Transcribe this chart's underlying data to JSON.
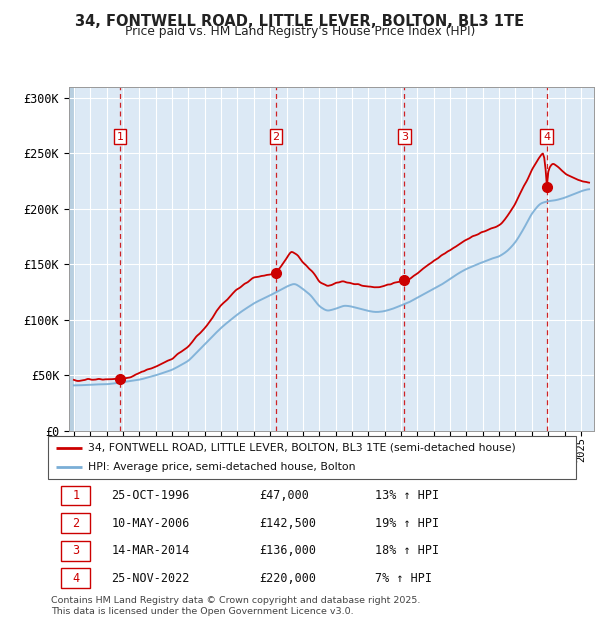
{
  "title_line1": "34, FONTWELL ROAD, LITTLE LEVER, BOLTON, BL3 1TE",
  "title_line2": "Price paid vs. HM Land Registry's House Price Index (HPI)",
  "bg_color": "#dce9f5",
  "hatch_left_color": "#c8d8ea",
  "grid_color": "#ffffff",
  "red_line_color": "#cc0000",
  "blue_line_color": "#7aaed6",
  "ylabel_values": [
    "£0",
    "£50K",
    "£100K",
    "£150K",
    "£200K",
    "£250K",
    "£300K"
  ],
  "ylim": [
    0,
    310000
  ],
  "xlim_start": 1993.7,
  "xlim_end": 2025.8,
  "sale_dates": [
    1996.82,
    2006.36,
    2014.21,
    2022.9
  ],
  "sale_prices": [
    47000,
    142500,
    136000,
    220000
  ],
  "sale_labels": [
    "1",
    "2",
    "3",
    "4"
  ],
  "legend_entries": [
    "34, FONTWELL ROAD, LITTLE LEVER, BOLTON, BL3 1TE (semi-detached house)",
    "HPI: Average price, semi-detached house, Bolton"
  ],
  "table_data": [
    [
      "1",
      "25-OCT-1996",
      "£47,000",
      "13% ↑ HPI"
    ],
    [
      "2",
      "10-MAY-2006",
      "£142,500",
      "19% ↑ HPI"
    ],
    [
      "3",
      "14-MAR-2014",
      "£136,000",
      "18% ↑ HPI"
    ],
    [
      "4",
      "25-NOV-2022",
      "£220,000",
      "7% ↑ HPI"
    ]
  ],
  "footnote": "Contains HM Land Registry data © Crown copyright and database right 2025.\nThis data is licensed under the Open Government Licence v3.0."
}
